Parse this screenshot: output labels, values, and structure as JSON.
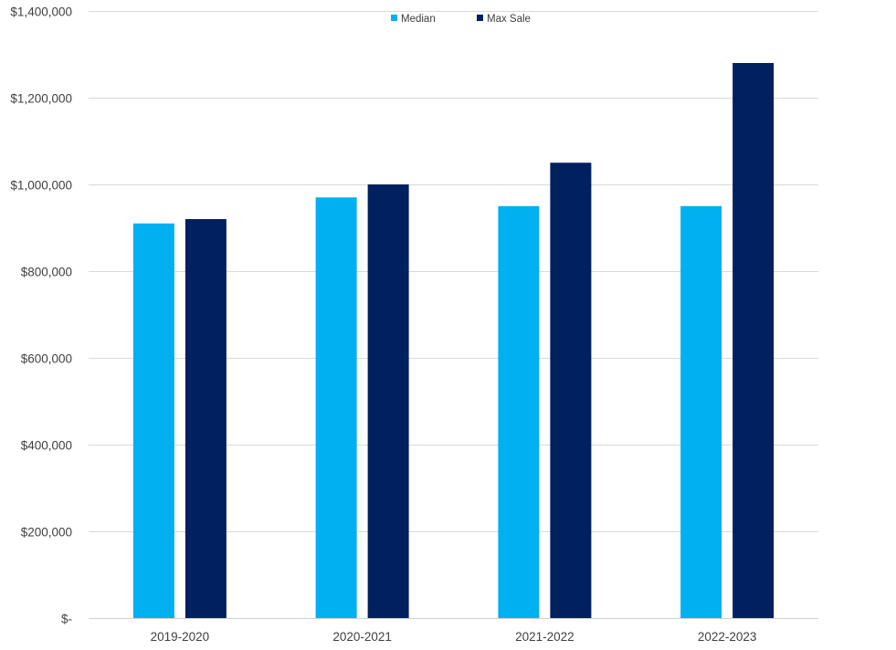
{
  "chart_data": {
    "type": "bar",
    "title": "",
    "xlabel": "",
    "ylabel": "",
    "categories": [
      "2019-2020",
      "2020-2021",
      "2021-2022",
      "2022-2023"
    ],
    "series": [
      {
        "name": "Median",
        "color": "#00B0F0",
        "values": [
          910000,
          970000,
          950000,
          950000
        ]
      },
      {
        "name": "Max Sale",
        "color": "#002060",
        "values": [
          920000,
          1000000,
          1050000,
          1280000
        ]
      }
    ],
    "ylim": [
      0,
      1400000
    ],
    "yticks": [
      0,
      200000,
      400000,
      600000,
      800000,
      1000000,
      1200000,
      1400000
    ],
    "ytick_labels": [
      "$-",
      "$200,000",
      "$400,000",
      "$600,000",
      "$800,000",
      "$1,000,000",
      "$1,200,000",
      "$1,400,000"
    ],
    "grid": true,
    "legend": "top-center"
  }
}
